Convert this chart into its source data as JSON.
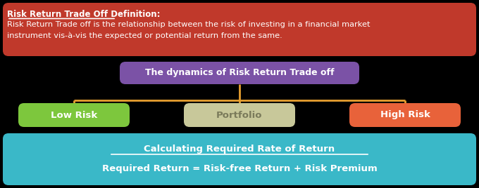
{
  "bg_color": "#000000",
  "top_box": {
    "color": "#c0392b",
    "title": "Risk Return Trade Off Definition:",
    "body": "Risk Return Trade off is the relationship between the risk of investing in a financial market\ninstrument vis-à-vis the expected or potential return from the same.",
    "text_color": "#ffffff"
  },
  "middle_box": {
    "text": "The dynamics of Risk Return Trade off",
    "color": "#7b52a6",
    "text_color": "#ffffff"
  },
  "child_boxes": [
    {
      "text": "Low Risk",
      "color": "#7dc73d",
      "text_color": "#ffffff"
    },
    {
      "text": "Portfolio",
      "color": "#c8c89a",
      "text_color": "#7a7a5a"
    },
    {
      "text": "High Risk",
      "color": "#e8623a",
      "text_color": "#ffffff"
    }
  ],
  "connector_color": "#e8a030",
  "bottom_box": {
    "color": "#3ab8c8",
    "line1": "Calculating Required Rate of Return",
    "line2": "Required Return = Risk-free Return + Risk Premium",
    "text_color": "#ffffff"
  }
}
